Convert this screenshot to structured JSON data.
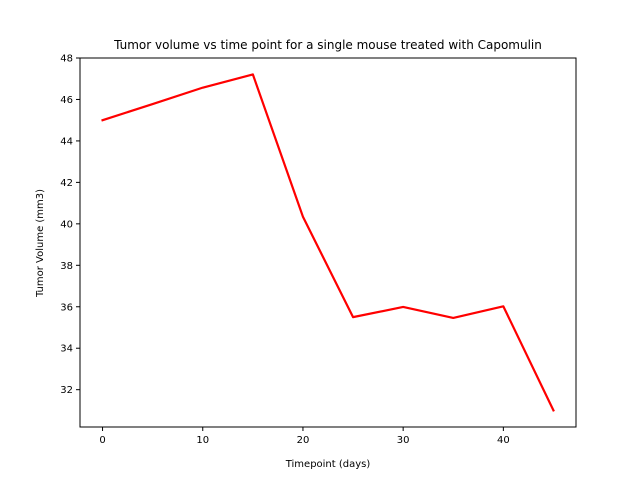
{
  "chart_data": {
    "type": "line",
    "title": "Tumor volume vs time point for a single mouse treated with Capomulin",
    "xlabel": "Timepoint (days)",
    "ylabel": "Tumor Volume (mm3)",
    "xlim": [
      -2.25,
      47.25
    ],
    "ylim": [
      30.2,
      48.0
    ],
    "xticks": [
      0,
      10,
      20,
      30,
      40
    ],
    "yticks": [
      32,
      34,
      36,
      38,
      40,
      42,
      44,
      46,
      48
    ],
    "grid": false,
    "series": [
      {
        "color": "#ff0000",
        "x": [
          0,
          5,
          10,
          15,
          20,
          25,
          30,
          35,
          40,
          45
        ],
        "y": [
          45.0,
          45.78,
          46.57,
          47.21,
          40.34,
          35.5,
          35.99,
          35.46,
          36.02,
          31.0
        ]
      }
    ]
  }
}
